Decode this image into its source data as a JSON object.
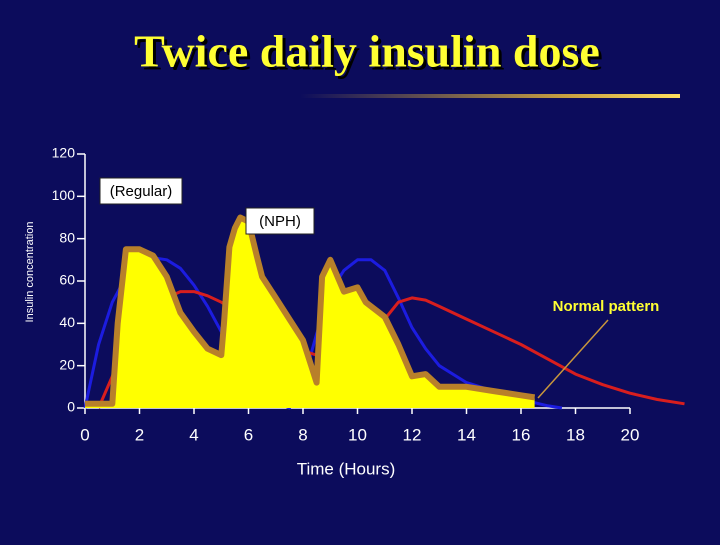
{
  "chart_data": {
    "type": "line",
    "title": "Twice daily insulin dose",
    "xlabel": "Time (Hours)",
    "ylabel": "Insulin concentration",
    "xlim": [
      0,
      20
    ],
    "ylim": [
      0,
      120
    ],
    "xticks": [
      0,
      2,
      4,
      6,
      8,
      10,
      12,
      14,
      16,
      18,
      20
    ],
    "yticks": [
      0,
      20,
      40,
      60,
      80,
      100,
      120
    ],
    "series": [
      {
        "name": "(Regular)",
        "color": "#1c1ce0",
        "x": [
          0,
          0.5,
          1,
          1.5,
          2,
          2.5,
          3,
          3.5,
          4,
          4.5,
          5,
          5.5,
          6,
          6.5,
          7,
          7.5,
          8,
          8.5,
          9,
          9.5,
          10,
          10.5,
          11,
          11.5,
          12,
          12.5,
          13,
          14,
          15,
          16,
          17,
          17.5
        ],
        "values": [
          0,
          30,
          50,
          62,
          68,
          71,
          70,
          66,
          58,
          48,
          36,
          25,
          15,
          8,
          3,
          0,
          12,
          35,
          55,
          65,
          70,
          70,
          65,
          52,
          38,
          28,
          20,
          12,
          8,
          4,
          1,
          0
        ]
      },
      {
        "name": "(NPH)",
        "color": "#d81e1e",
        "x": [
          0.5,
          1,
          1.5,
          2,
          2.5,
          3,
          3.5,
          4,
          4.5,
          5,
          5.5,
          6,
          6.5,
          7,
          7.5,
          8,
          8.5,
          9,
          9.5,
          10,
          10.5,
          11,
          11.5,
          12,
          12.5,
          13,
          14,
          15,
          16,
          17,
          18,
          19,
          20,
          21,
          22
        ],
        "values": [
          0,
          15,
          30,
          40,
          47,
          52,
          55,
          55,
          53,
          50,
          46,
          42,
          38,
          34,
          30,
          27,
          25,
          22,
          20,
          22,
          30,
          42,
          50,
          52,
          51,
          48,
          42,
          36,
          30,
          23,
          16,
          11,
          7,
          4,
          2
        ]
      },
      {
        "name": "Normal pattern",
        "color": "#ffff00",
        "edge": "#b8802a",
        "area": true,
        "x": [
          0,
          1,
          1.2,
          1.5,
          2,
          2.5,
          3,
          3.5,
          4,
          4.5,
          5,
          5.1,
          5.3,
          5.5,
          5.7,
          6,
          6.3,
          6.5,
          7,
          7.5,
          8,
          8.3,
          8.5,
          8.7,
          9,
          9.5,
          10,
          10.3,
          11,
          11.5,
          12,
          12.5,
          13,
          14,
          15,
          16,
          16.5
        ],
        "values": [
          2,
          2,
          40,
          75,
          75,
          72,
          62,
          45,
          36,
          28,
          25,
          40,
          76,
          85,
          90,
          88,
          72,
          62,
          52,
          42,
          32,
          20,
          12,
          62,
          70,
          55,
          57,
          50,
          43,
          30,
          15,
          16,
          10,
          10,
          8,
          6,
          5
        ]
      }
    ]
  }
}
